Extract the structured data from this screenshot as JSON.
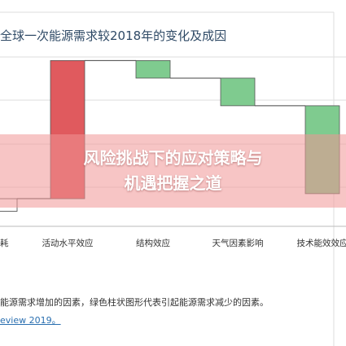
{
  "chart_data": {
    "type": "bar",
    "title": "全球一次能源需求较2018年的变化及成因",
    "categories": [
      "耗",
      "活动水平效应",
      "结构效应",
      "天气因素影响",
      "技术能效效应"
    ],
    "series": [
      {
        "name": "",
        "values": [
          0.25,
          2.75,
          0.35,
          0.55,
          1.75
        ]
      }
    ],
    "bars": [
      {
        "category": "耗",
        "start": 0.0,
        "end": 0.25,
        "color": "#ffffff"
      },
      {
        "category": "活动水平效应",
        "start": 0.25,
        "end": 3.0,
        "color": "#e05a5e"
      },
      {
        "category": "结构效应",
        "start": 3.0,
        "end": 2.65,
        "color": "#7fcb8f"
      },
      {
        "category": "天气因素影响",
        "start": 2.65,
        "end": 2.1,
        "color": "#7fcb8f"
      },
      {
        "category": "技术能效效应",
        "start": 2.1,
        "end": 0.35,
        "color": "#7fcb8f"
      }
    ],
    "ylim": [
      -0.3,
      3.2
    ],
    "grid": true,
    "xlabel": "",
    "ylabel": ""
  },
  "banner": {
    "line1": "风险挑战下的应对策略与",
    "line2": "机遇把握之道"
  },
  "footnote": "能源需求增加的因素，绿色柱状图形代表引起能源需求减少的因素。",
  "source": "eview 2019。",
  "colors": {
    "increase": "#e05a5e",
    "decrease": "#7fcb8f",
    "grid": "#dddddd",
    "connector": "#444444"
  }
}
